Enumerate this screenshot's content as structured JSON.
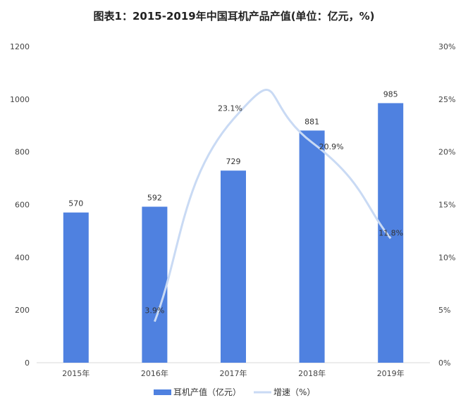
{
  "chart_data": {
    "type": "bar+line",
    "title": "图表1：2015-2019年中国耳机产品产值(单位：亿元，%)",
    "categories": [
      "2015年",
      "2016年",
      "2017年",
      "2018年",
      "2019年"
    ],
    "series": [
      {
        "name": "耳机产值（亿元）",
        "type": "bar",
        "axis": "left",
        "color": "#4F81E0",
        "values": [
          570,
          592,
          729,
          881,
          985
        ],
        "labels": [
          "570",
          "592",
          "729",
          "881",
          "985"
        ]
      },
      {
        "name": "增速（%）",
        "type": "line",
        "axis": "right",
        "smooth": true,
        "color": "#C9DAF4",
        "values": [
          null,
          3.9,
          23.1,
          20.9,
          11.8
        ],
        "labels": [
          "",
          "3.9%",
          "23.1%",
          "20.9%",
          "11.8%"
        ]
      }
    ],
    "y_left": {
      "range": [
        0,
        1200
      ],
      "ticks": [
        "0",
        "200",
        "400",
        "600",
        "800",
        "1000",
        "1200"
      ]
    },
    "y_right": {
      "range": [
        0,
        30
      ],
      "ticks": [
        "0%",
        "5%",
        "10%",
        "15%",
        "20%",
        "25%",
        "30%"
      ]
    },
    "grid": false,
    "legend": "bottom"
  }
}
